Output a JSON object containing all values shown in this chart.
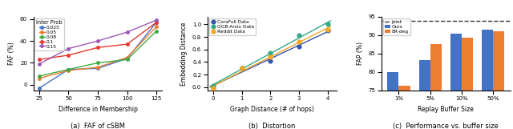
{
  "plot1": {
    "x": [
      25,
      50,
      75,
      100,
      125
    ],
    "lines": {
      "0.025": [
        -3,
        14,
        15,
        24,
        57
      ],
      "0.05": [
        6,
        13,
        16,
        25,
        53
      ],
      "0.08": [
        8,
        14,
        20,
        23,
        49
      ],
      "0.1": [
        23,
        27,
        34,
        37,
        57
      ],
      "0.15": [
        19,
        33,
        40,
        48,
        59
      ]
    },
    "colors": {
      "0.025": "#4472c4",
      "0.05": "#ed7d31",
      "0.08": "#44aa44",
      "0.1": "#e8382e",
      "0.15": "#9b59b6"
    },
    "xlabel": "Difference in Membership",
    "ylabel": "FAF (%)",
    "ylim": [
      -5,
      62
    ],
    "xlim": [
      20,
      130
    ],
    "xticks": [
      25,
      50,
      75,
      100,
      125
    ],
    "yticks": [
      0,
      20,
      40,
      60
    ],
    "legend_title": "Inter Prob",
    "caption": "(a)  FAF of cSBM"
  },
  "plot2": {
    "x": [
      0,
      1,
      2,
      3,
      4
    ],
    "lines": {
      "CoraFull Data": [
        0.0,
        0.3,
        0.42,
        0.65,
        0.9
      ],
      "OGB-Arxiv Data": [
        0.02,
        0.3,
        0.54,
        0.82,
        1.0
      ],
      "Reddit Data": [
        -0.02,
        0.3,
        0.48,
        0.73,
        0.92
      ]
    },
    "colors": {
      "CoraFull Data": "#3355aa",
      "OGB-Arxiv Data": "#33aa88",
      "Reddit Data": "#f5a623"
    },
    "xlabel": "Graph Distance (# of hops)",
    "ylabel": "Embedding Distance",
    "ylim": [
      -0.05,
      1.12
    ],
    "xlim": [
      -0.2,
      4.3
    ],
    "yticks": [
      0.0,
      0.2,
      0.4,
      0.6,
      0.8,
      1.0
    ],
    "caption": "(b)  Distortion"
  },
  "plot3": {
    "categories": [
      "1%",
      "5%",
      "10%",
      "50%"
    ],
    "ours": [
      80.0,
      83.2,
      90.3,
      91.5
    ],
    "erdeg": [
      76.2,
      87.5,
      89.4,
      91.0
    ],
    "joint": 93.8,
    "bar_color_ours": "#4472c4",
    "bar_color_erdeg": "#ed7d31",
    "joint_color": "#333333",
    "xlabel": "Replay Buffer Size",
    "ylabel": "FAP (%)",
    "ylim": [
      75,
      95
    ],
    "yticks": [
      75,
      80,
      85,
      90,
      95
    ],
    "caption": "(c)  Performance vs. buffer size"
  }
}
